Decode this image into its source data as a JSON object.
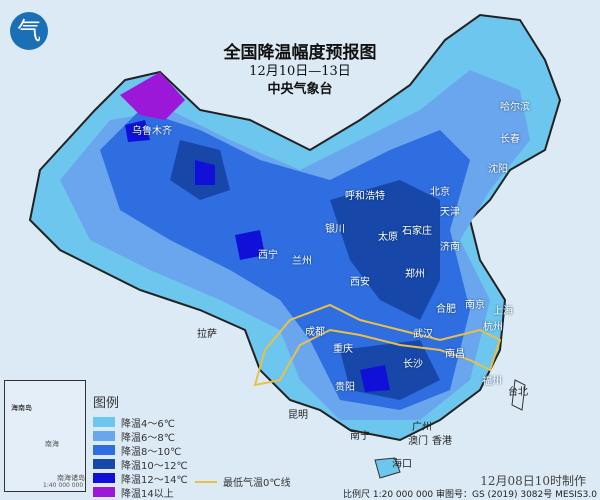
{
  "title": "全国降温幅度预报图",
  "date_range": "12月10日—13日",
  "issuer": "中央气象台",
  "logo_text": "气",
  "legend": {
    "title": "图例",
    "items": [
      {
        "label": "降温4～6℃",
        "color": "#6cc6ee"
      },
      {
        "label": "降温6～8℃",
        "color": "#6aa6ee"
      },
      {
        "label": "降温8～10℃",
        "color": "#2f6ee0"
      },
      {
        "label": "降温10～12℃",
        "color": "#1747a8"
      },
      {
        "label": "降温12～14℃",
        "color": "#1010d8"
      },
      {
        "label": "降温14以上",
        "color": "#9b18d8"
      }
    ]
  },
  "zero_line_label": "最低气温0℃线",
  "zero_line_color": "#e8c04a",
  "made_time": "12月08日10时制作",
  "scale_text": "比例尺 1:20 000 000  审图号：GS (2019) 3082号 MESIS3.0",
  "inset": {
    "labels": [
      "海南岛",
      "南海",
      "南海诸岛"
    ],
    "scale": "1:40 000 000"
  },
  "cities": [
    "乌鲁木齐",
    "哈尔滨",
    "长春",
    "沈阳",
    "呼和浩特",
    "北京",
    "天津",
    "石家庄",
    "太原",
    "济南",
    "银川",
    "西宁",
    "兰州",
    "郑州",
    "西安",
    "合肥",
    "南京",
    "上海",
    "拉萨",
    "成都",
    "武汉",
    "杭州",
    "重庆",
    "长沙",
    "南昌",
    "贵阳",
    "福州",
    "台北",
    "昆明",
    "南宁",
    "广州",
    "澳门",
    "香港",
    "海口"
  ]
}
